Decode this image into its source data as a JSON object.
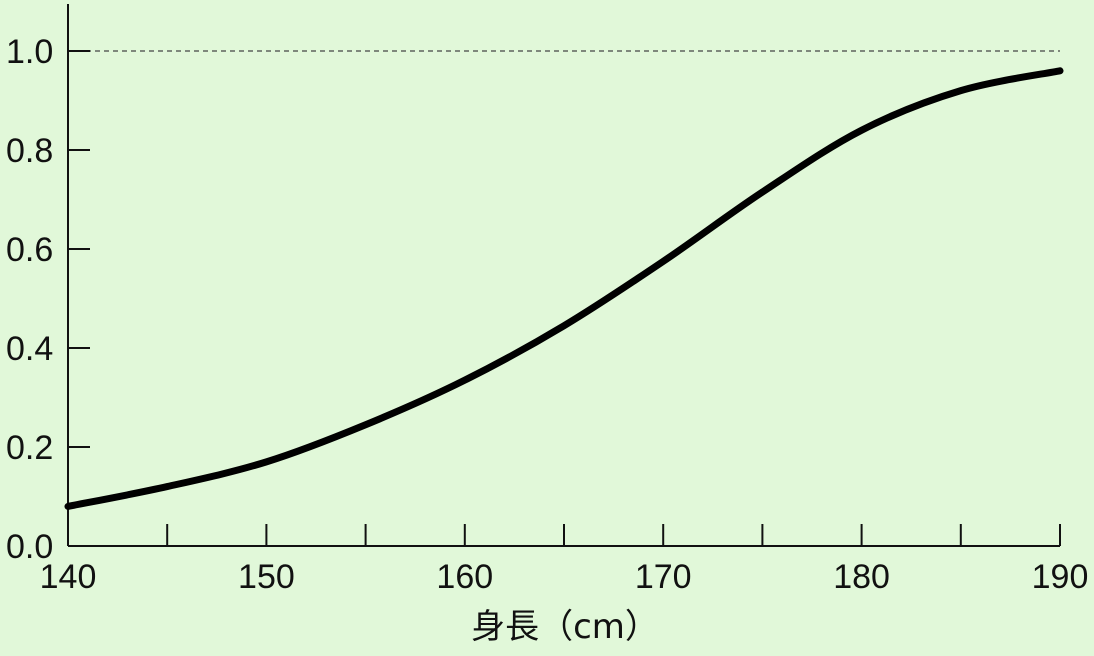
{
  "chart_data": {
    "type": "line",
    "title": "",
    "xlabel": "身長（cm）",
    "ylabel": "",
    "xlim": [
      140,
      190
    ],
    "ylim": [
      0,
      1.1
    ],
    "x_ticks": [
      140,
      150,
      160,
      170,
      180,
      190
    ],
    "x_tick_labels": [
      "140",
      "150",
      "160",
      "170",
      "180",
      "190"
    ],
    "x_minor_ticks": [
      145,
      155,
      165,
      175,
      185
    ],
    "y_ticks": [
      0,
      0.2,
      0.4,
      0.6,
      0.8,
      1.0
    ],
    "y_tick_labels": [
      "0.0",
      "0.2",
      "0.4",
      "0.6",
      "0.8",
      "1.0"
    ],
    "reference_line": {
      "y": 1.0,
      "style": "dashed"
    },
    "grid": false,
    "series": [
      {
        "x": [
          140,
          145,
          150,
          155,
          160,
          165,
          170,
          175,
          180,
          185,
          190
        ],
        "y": [
          0.08,
          0.12,
          0.17,
          0.245,
          0.335,
          0.445,
          0.575,
          0.715,
          0.84,
          0.92,
          0.96
        ]
      }
    ],
    "colors": {
      "background": "#e1f8d9",
      "line": "#000000",
      "axis": "#111111"
    }
  }
}
